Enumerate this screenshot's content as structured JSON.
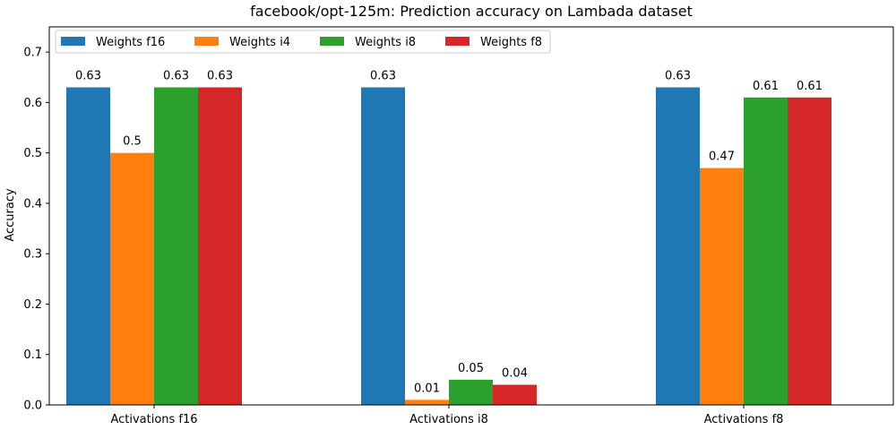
{
  "chart_data": {
    "type": "bar",
    "title": "facebook/opt-125m: Prediction accuracy on Lambada dataset",
    "xlabel": "",
    "ylabel": "Accuracy",
    "categories": [
      "Activations f16",
      "Activations i8",
      "Activations f8"
    ],
    "series": [
      {
        "name": "Weights f16",
        "color": "#1f77b4",
        "values": [
          0.63,
          0.63,
          0.63
        ]
      },
      {
        "name": "Weights i4",
        "color": "#ff7f0e",
        "values": [
          0.5,
          0.01,
          0.47
        ]
      },
      {
        "name": "Weights i8",
        "color": "#2ca02c",
        "values": [
          0.63,
          0.05,
          0.61
        ]
      },
      {
        "name": "Weights f8",
        "color": "#d62728",
        "values": [
          0.63,
          0.04,
          0.61
        ]
      }
    ],
    "ylim": [
      0,
      0.75
    ],
    "yticks": [
      0.0,
      0.1,
      0.2,
      0.3,
      0.4,
      0.5,
      0.6,
      0.7
    ],
    "ytick_labels": [
      "0.0",
      "0.1",
      "0.2",
      "0.3",
      "0.4",
      "0.5",
      "0.6",
      "0.7"
    ],
    "grid": false,
    "legend_position": "top-left"
  }
}
